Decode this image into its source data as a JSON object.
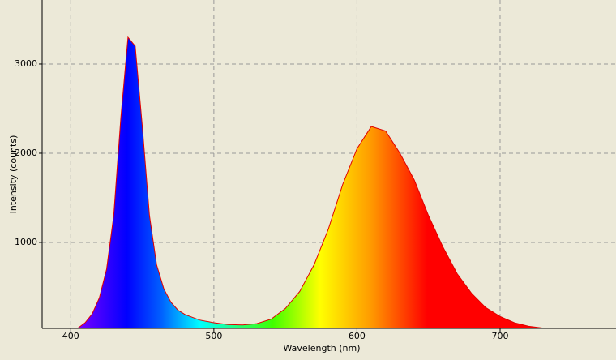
{
  "chart_data": {
    "type": "area",
    "xlabel": "Wavelength (nm)",
    "ylabel": "Intensity (counts)",
    "x": [
      405,
      410,
      415,
      420,
      425,
      430,
      435,
      440,
      445,
      450,
      455,
      460,
      465,
      470,
      475,
      480,
      490,
      500,
      510,
      520,
      530,
      540,
      550,
      560,
      570,
      580,
      590,
      600,
      610,
      620,
      630,
      640,
      650,
      660,
      670,
      680,
      690,
      700,
      710,
      720,
      730
    ],
    "values": [
      40,
      100,
      200,
      380,
      700,
      1300,
      2400,
      3300,
      3200,
      2300,
      1300,
      750,
      480,
      330,
      240,
      190,
      130,
      100,
      80,
      75,
      90,
      140,
      260,
      450,
      750,
      1150,
      1650,
      2050,
      2300,
      2250,
      2000,
      1700,
      1300,
      950,
      650,
      430,
      270,
      170,
      100,
      60,
      40
    ],
    "color": "#e00000",
    "xlim": [
      380,
      781
    ],
    "ylim": [
      36,
      3718
    ],
    "xticks": [
      400,
      500,
      600,
      700
    ],
    "yticks": [
      1000,
      2000,
      3000
    ],
    "grid": true
  }
}
